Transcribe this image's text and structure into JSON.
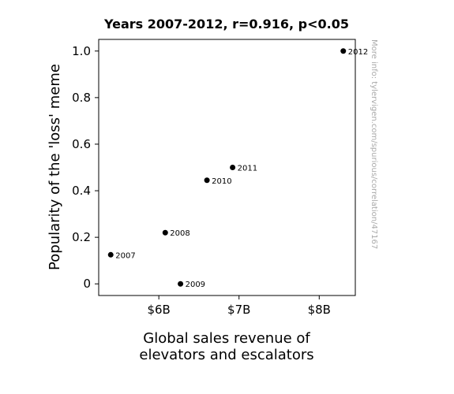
{
  "chart_data": {
    "type": "scatter",
    "title": "Years 2007-2012, r=0.916, p<0.05",
    "xlabel_lines": [
      "Global sales revenue of",
      "elevators and escalators"
    ],
    "ylabel": "Popularity of the 'loss' meme",
    "xlim": [
      5.25,
      8.45
    ],
    "ylim": [
      -0.05,
      1.05
    ],
    "x_ticks": [
      {
        "value": 6,
        "label": "$6B"
      },
      {
        "value": 7,
        "label": "$7B"
      },
      {
        "value": 8,
        "label": "$8B"
      }
    ],
    "y_ticks": [
      {
        "value": 0,
        "label": "0"
      },
      {
        "value": 0.2,
        "label": "0.2"
      },
      {
        "value": 0.4,
        "label": "0.4"
      },
      {
        "value": 0.6,
        "label": "0.6"
      },
      {
        "value": 0.8,
        "label": "0.8"
      },
      {
        "value": 1.0,
        "label": "1.0"
      }
    ],
    "points": [
      {
        "label": "2007",
        "x": 5.4,
        "y": 0.125
      },
      {
        "label": "2008",
        "x": 6.08,
        "y": 0.22
      },
      {
        "label": "2009",
        "x": 6.27,
        "y": 0.0
      },
      {
        "label": "2010",
        "x": 6.6,
        "y": 0.445
      },
      {
        "label": "2011",
        "x": 6.92,
        "y": 0.5
      },
      {
        "label": "2012",
        "x": 8.3,
        "y": 1.0
      }
    ],
    "grid": false,
    "marker_color": "#000000"
  },
  "watermark": "More info: tylervigen.com/spurious/correlation/47167"
}
